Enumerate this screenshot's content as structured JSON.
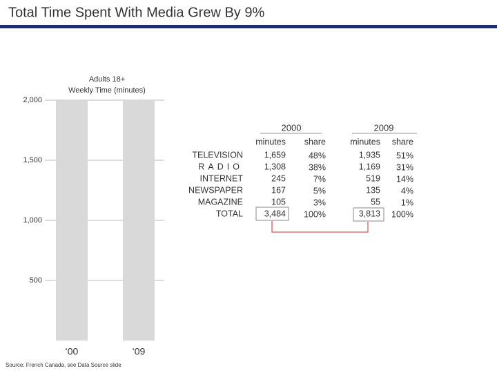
{
  "title": "Total Time Spent With Media Grew By 9%",
  "chart_data": {
    "type": "bar",
    "subtitle": [
      "Adults 18+",
      "Weekly Time (minutes)"
    ],
    "categories": [
      "‘00",
      "‘09"
    ],
    "values": [
      2000,
      2000
    ],
    "color": "#d9d9d9",
    "ylim": [
      0,
      2000
    ],
    "yticks": [
      {
        "value": 500,
        "label": "500"
      },
      {
        "value": 1000,
        "label": "1,000"
      },
      {
        "value": 1500,
        "label": "1,500"
      },
      {
        "value": 2000,
        "label": "2,000"
      }
    ],
    "grid": true
  },
  "table": {
    "years": [
      "2000",
      "2009"
    ],
    "columns": [
      "minutes",
      "share",
      "minutes",
      "share"
    ],
    "rows": [
      {
        "label": "TELEVISION",
        "color": "#d4501c",
        "cells": [
          "1,659",
          "48%",
          "1,935",
          "51%"
        ]
      },
      {
        "label": "RADIO",
        "color": "#23337e",
        "cells": [
          "1,308",
          "38%",
          "1,169",
          "31%"
        ]
      },
      {
        "label": "INTERNET",
        "color": "#17603a",
        "cells": [
          "245",
          "7%",
          "519",
          "14%"
        ]
      },
      {
        "label": "NEWSPAPER",
        "color": "#8a2d92",
        "cells": [
          "167",
          "5%",
          "135",
          "4%"
        ]
      },
      {
        "label": "MAGAZINE",
        "color": "#c98719",
        "cells": [
          "105",
          "3%",
          "55",
          "1%"
        ]
      },
      {
        "label": "TOTAL",
        "color": "#333333",
        "cells": [
          "3,484",
          "100%",
          "3,813",
          "100%"
        ]
      }
    ]
  },
  "source": "Source: French Canada, see Data Source slide"
}
